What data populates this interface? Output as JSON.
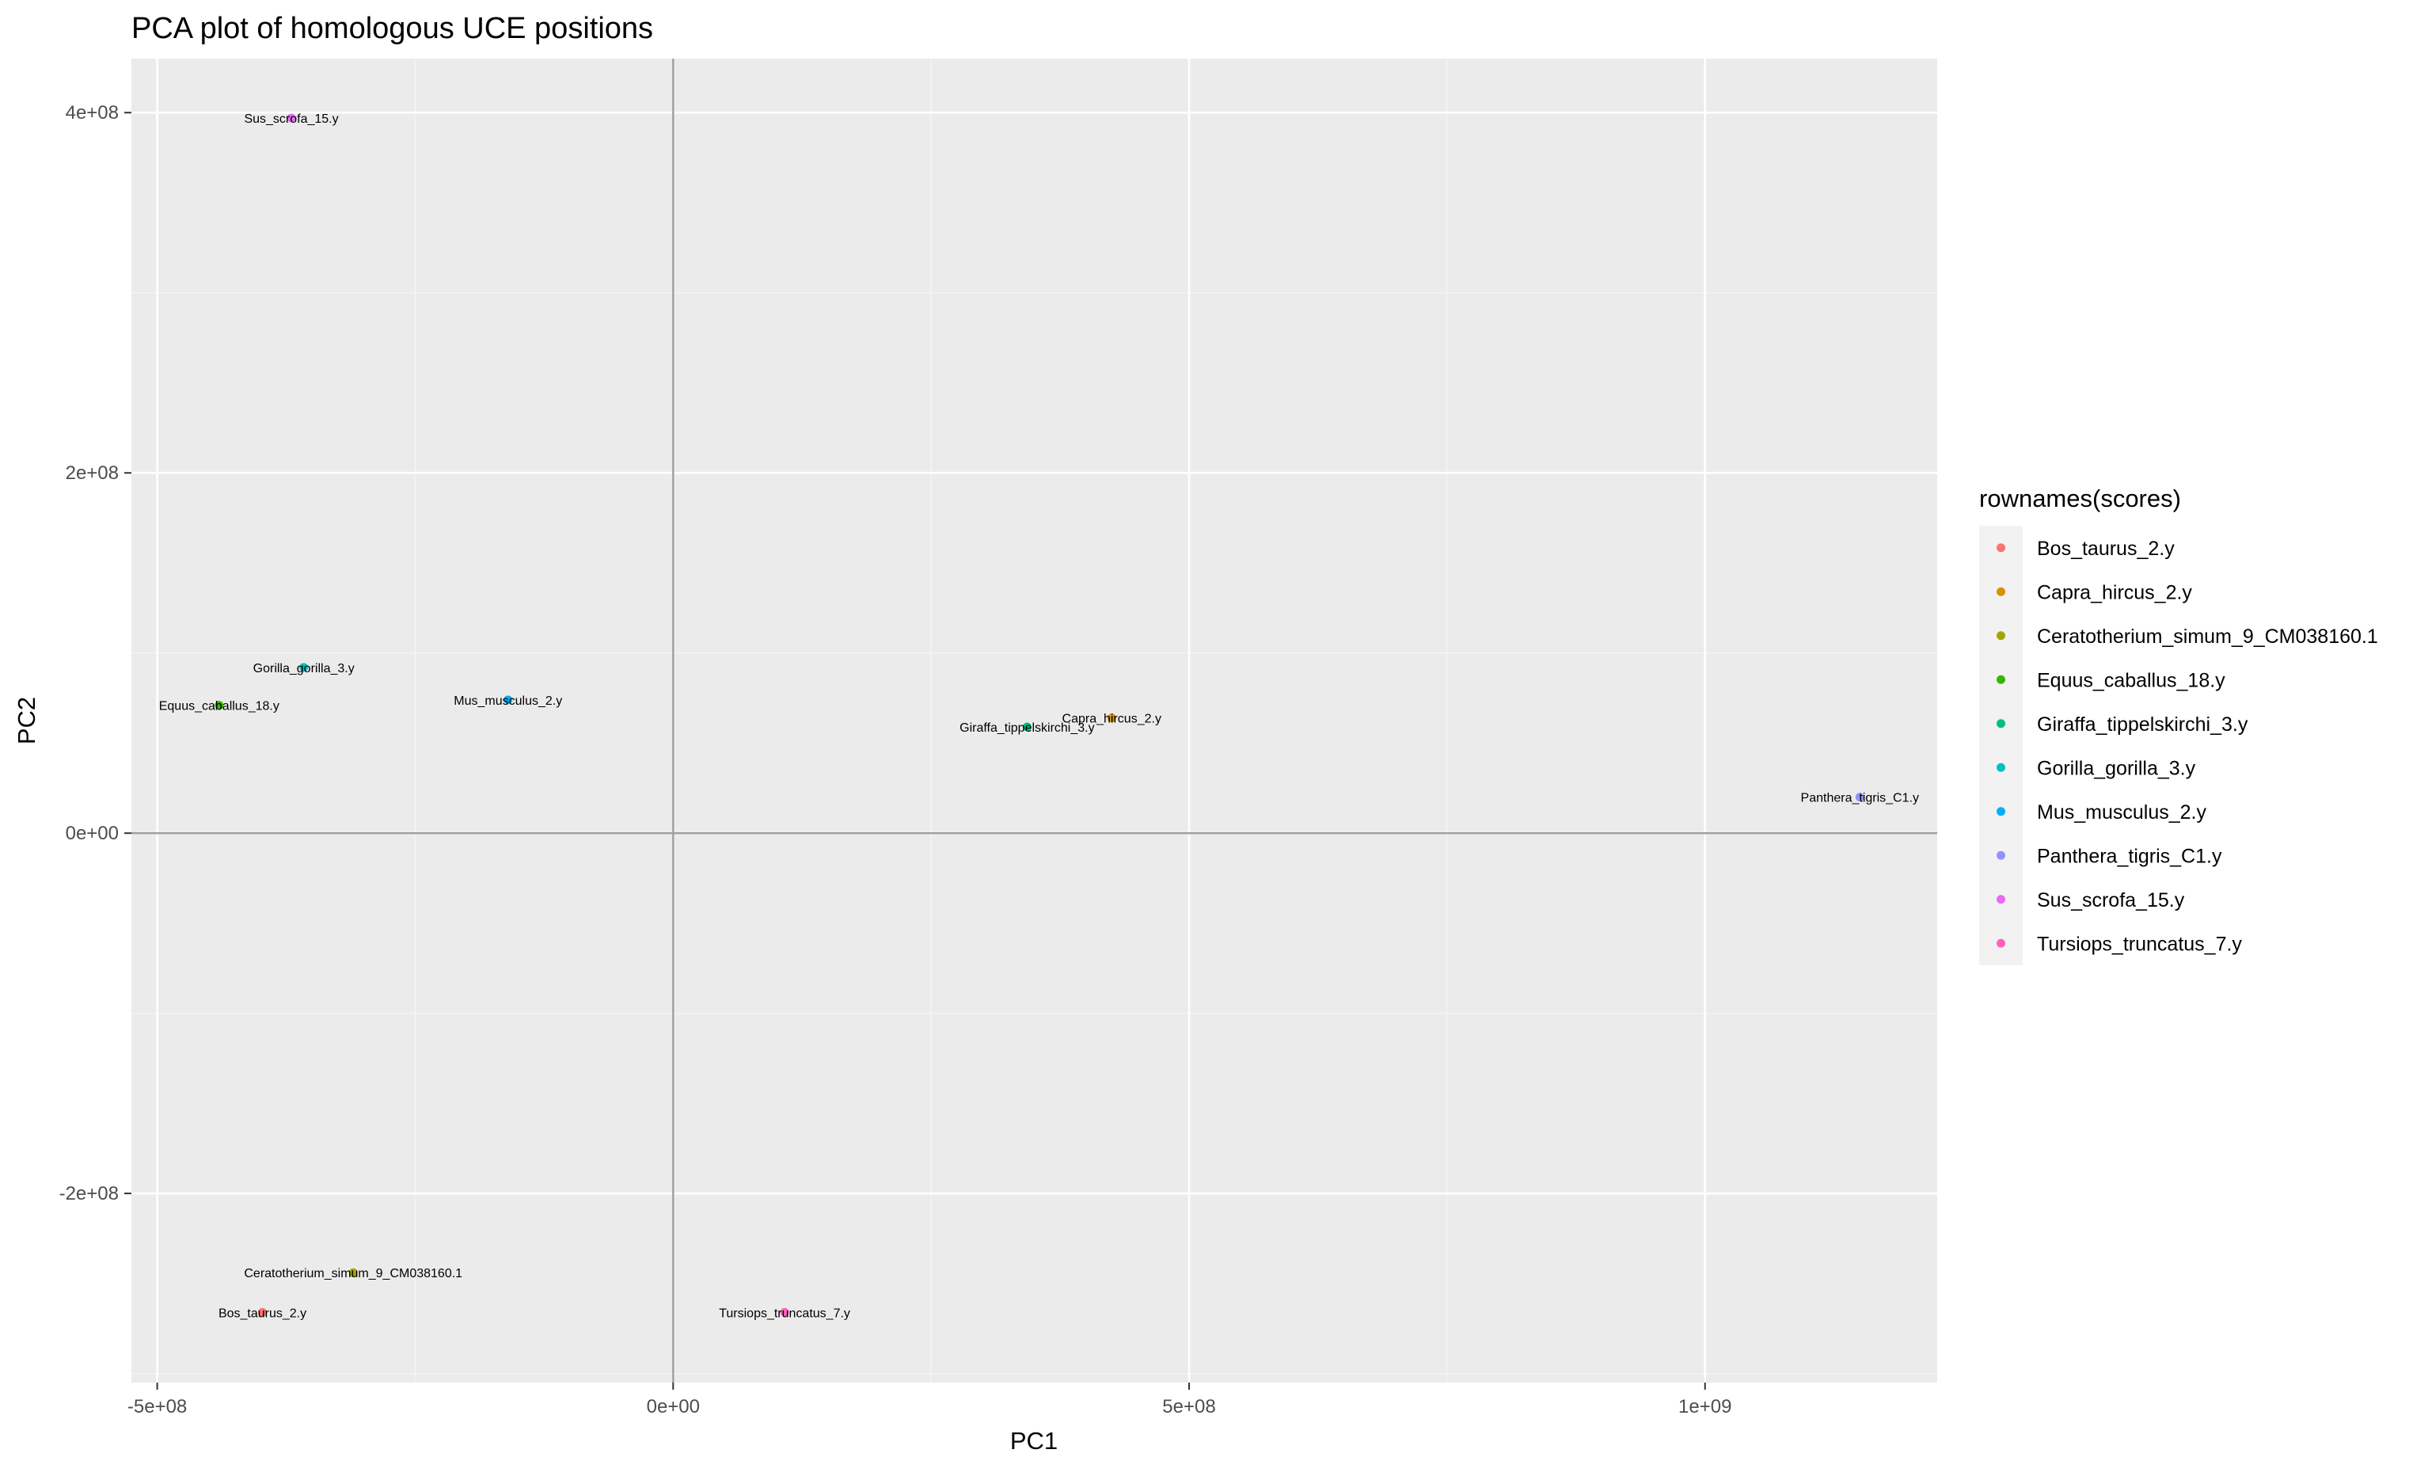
{
  "chart_data": {
    "type": "scatter",
    "title": "PCA plot of homologous UCE positions",
    "xlabel": "PC1",
    "ylabel": "PC2",
    "xlim": [
      -525000000,
      1225000000
    ],
    "ylim": [
      -305000000,
      430000000
    ],
    "x_ticks": [
      {
        "value": -500000000,
        "label": "-5e+08"
      },
      {
        "value": 0,
        "label": "0e+00"
      },
      {
        "value": 500000000,
        "label": "5e+08"
      },
      {
        "value": 1000000000,
        "label": "1e+09"
      }
    ],
    "y_ticks": [
      {
        "value": -200000000,
        "label": "-2e+08"
      },
      {
        "value": 0,
        "label": "0e+00"
      },
      {
        "value": 200000000,
        "label": "2e+08"
      },
      {
        "value": 400000000,
        "label": "4e+08"
      }
    ],
    "grid": true,
    "reference_lines": {
      "x": 0,
      "y": 0
    },
    "legend": {
      "title": "rownames(scores)",
      "position": "right"
    },
    "points": [
      {
        "label": "Bos_taurus_2.y",
        "x": -398000000,
        "y": -266000000,
        "color": "#F8766D"
      },
      {
        "label": "Capra_hircus_2.y",
        "x": 425000000,
        "y": 64000000,
        "color": "#D89000"
      },
      {
        "label": "Ceratotherium_simum_9_CM038160.1",
        "x": -310000000,
        "y": -244000000,
        "color": "#A3A500"
      },
      {
        "label": "Equus_caballus_18.y",
        "x": -440000000,
        "y": 71000000,
        "color": "#39B600"
      },
      {
        "label": "Giraffa_tippelskirchi_3.y",
        "x": 343000000,
        "y": 59000000,
        "color": "#00BF7D"
      },
      {
        "label": "Gorilla_gorilla_3.y",
        "x": -358000000,
        "y": 92000000,
        "color": "#00BFC4"
      },
      {
        "label": "Mus_musculus_2.y",
        "x": -160000000,
        "y": 74000000,
        "color": "#00B0F6"
      },
      {
        "label": "Panthera_tigris_C1.y",
        "x": 1150000000,
        "y": 20000000,
        "color": "#9590FF"
      },
      {
        "label": "Sus_scrofa_15.y",
        "x": -370000000,
        "y": 397000000,
        "color": "#E76BF3"
      },
      {
        "label": "Tursiops_truncatus_7.y",
        "x": 108000000,
        "y": -266000000,
        "color": "#FF62BC"
      }
    ]
  }
}
